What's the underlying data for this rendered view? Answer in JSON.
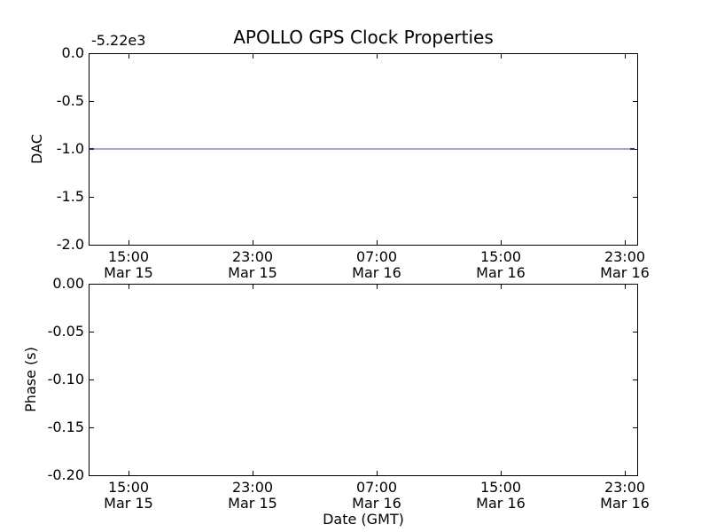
{
  "chart_data": [
    {
      "type": "line",
      "title": "APOLLO GPS Clock Properties",
      "ylabel": "DAC",
      "xlabel": "",
      "y_offset_text": "-5.22e3",
      "ylim": [
        -2.0,
        0.0
      ],
      "yticks": [
        0.0,
        -0.5,
        -1.0,
        -1.5,
        -2.0
      ],
      "yticklabels": [
        "0.0",
        "-0.5",
        "-1.0",
        "-1.5",
        "-2.0"
      ],
      "xticklabels": [
        [
          "15:00",
          "Mar 15"
        ],
        [
          "23:00",
          "Mar 15"
        ],
        [
          "07:00",
          "Mar 16"
        ],
        [
          "15:00",
          "Mar 16"
        ],
        [
          "23:00",
          "Mar 16"
        ]
      ],
      "grid": false,
      "legend": "none",
      "series": [
        {
          "name": "DAC",
          "shape": "horizontal-line",
          "y": -1.0,
          "y_absolute": -5221.0,
          "color": "#a3a3ef",
          "endpoint_color": "#2f2f73",
          "x_extent": "full-range"
        }
      ]
    },
    {
      "type": "line",
      "title": "",
      "ylabel": "Phase (s)",
      "xlabel": "Date (GMT)",
      "ylim": [
        -0.2,
        0.0
      ],
      "yticks": [
        0.0,
        -0.05,
        -0.1,
        -0.15,
        -0.2
      ],
      "yticklabels": [
        "0.00",
        "-0.05",
        "-0.10",
        "-0.15",
        "-0.20"
      ],
      "xticklabels": [
        [
          "15:00",
          "Mar 15"
        ],
        [
          "23:00",
          "Mar 15"
        ],
        [
          "07:00",
          "Mar 16"
        ],
        [
          "15:00",
          "Mar 16"
        ],
        [
          "23:00",
          "Mar 16"
        ]
      ],
      "grid": false,
      "legend": "none",
      "series": []
    }
  ]
}
